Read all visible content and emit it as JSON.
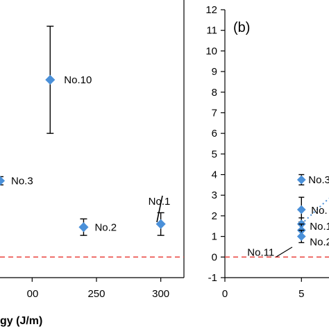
{
  "chart_data": [
    {
      "type": "scatter",
      "panel": "",
      "xlabel": "gy (J/m)",
      "xticks": [
        "00",
        "250",
        "300"
      ],
      "xlim": [
        175,
        318
      ],
      "ylim": [
        -1,
        12
      ],
      "reference_line": {
        "y": 0,
        "style": "dashed",
        "color": "#e8322d"
      },
      "points": [
        {
          "name": "No.10",
          "x": 214,
          "y": 8.6,
          "err": 2.6
        },
        {
          "name": "No.3",
          "x": 175,
          "y": 3.7,
          "err": 0.2
        },
        {
          "name": "No.2",
          "x": 240,
          "y": 1.45,
          "err": 0.4
        },
        {
          "name": "No.1",
          "x": 300,
          "y": 1.6,
          "err": 0.55
        }
      ]
    },
    {
      "type": "scatter",
      "panel": "(b)",
      "xlabel": "",
      "xticks": [
        "0",
        "5"
      ],
      "yticks": [
        "-1",
        "0",
        "1",
        "2",
        "3",
        "4",
        "5",
        "6",
        "7",
        "8",
        "9",
        "10",
        "11",
        "12"
      ],
      "xlim": [
        0,
        6.8
      ],
      "ylim": [
        -1,
        12
      ],
      "reference_line": {
        "y": 0,
        "style": "dashed",
        "color": "#e8322d"
      },
      "trend": {
        "style": "dotted",
        "color": "#4a90d9",
        "x": [
          5.0,
          6.8
        ],
        "y": [
          1.6,
          2.85
        ]
      },
      "points": [
        {
          "name": "No.3",
          "x": 5,
          "y": 3.75,
          "err": 0.25
        },
        {
          "name": "No.",
          "x": 5,
          "y": 2.3,
          "err": 0.6
        },
        {
          "name": "No.1",
          "x": 5,
          "y": 1.6,
          "err": 0.3
        },
        {
          "name": "No.2",
          "x": 5,
          "y": 1.3,
          "err": 0.3
        },
        {
          "name": "No.11",
          "x": 5,
          "y": 1.0,
          "err": 0.3
        }
      ]
    }
  ],
  "colors": {
    "marker": "#4a90d9",
    "errorbar": "#000000",
    "axis": "#000000"
  }
}
